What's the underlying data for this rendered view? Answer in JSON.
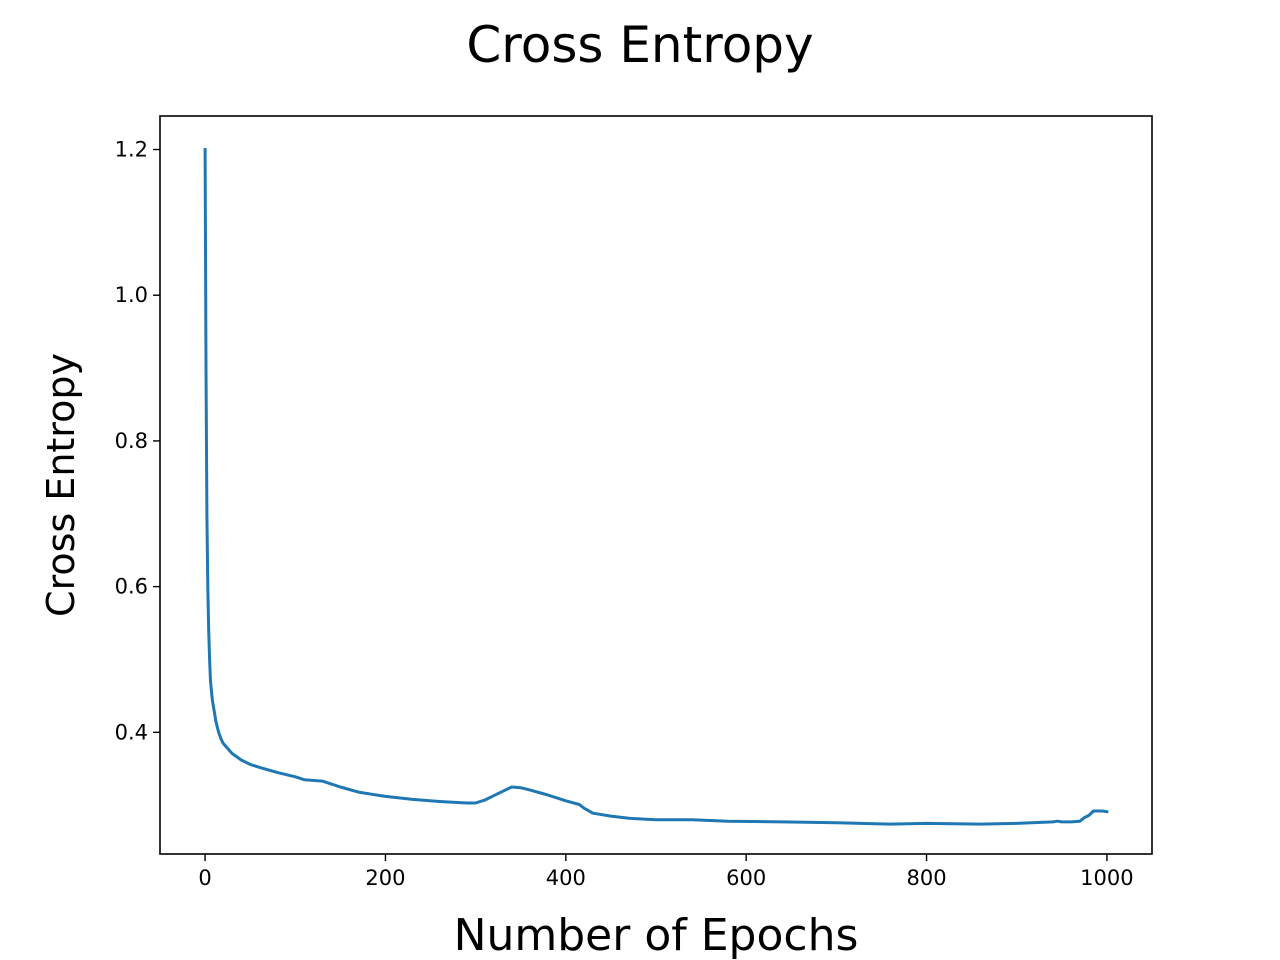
{
  "chart_data": {
    "type": "line",
    "title": "Cross Entropy",
    "xlabel": "Number of Epochs",
    "ylabel": "Cross Entropy",
    "xlim": [
      -50,
      1050
    ],
    "ylim": [
      0.233,
      1.246
    ],
    "xticks": [
      0,
      200,
      400,
      600,
      800,
      1000
    ],
    "yticks": [
      0.4,
      0.6,
      0.8,
      1.0,
      1.2
    ],
    "xtick_labels": [
      "0",
      "200",
      "400",
      "600",
      "800",
      "1000"
    ],
    "ytick_labels": [
      "0.4",
      "0.6",
      "0.8",
      "1.0",
      "1.2"
    ],
    "grid": false,
    "series": [
      {
        "color": "#1f77b4",
        "x": [
          0,
          1,
          2,
          3,
          4,
          5,
          6,
          8,
          10,
          12,
          15,
          18,
          20,
          25,
          30,
          40,
          50,
          60,
          80,
          100,
          110,
          130,
          150,
          170,
          200,
          230,
          260,
          290,
          300,
          310,
          320,
          330,
          340,
          350,
          360,
          380,
          400,
          415,
          420,
          430,
          450,
          470,
          500,
          540,
          580,
          640,
          700,
          760,
          800,
          860,
          900,
          940,
          945,
          950,
          960,
          970,
          975,
          980,
          985,
          990,
          995,
          1000
        ],
        "y": [
          1.2,
          0.9,
          0.7,
          0.6,
          0.54,
          0.5,
          0.47,
          0.445,
          0.43,
          0.415,
          0.4,
          0.39,
          0.385,
          0.378,
          0.371,
          0.362,
          0.356,
          0.352,
          0.345,
          0.339,
          0.335,
          0.333,
          0.325,
          0.318,
          0.312,
          0.308,
          0.305,
          0.303,
          0.303,
          0.307,
          0.313,
          0.319,
          0.325,
          0.324,
          0.321,
          0.314,
          0.306,
          0.301,
          0.296,
          0.289,
          0.285,
          0.282,
          0.28,
          0.28,
          0.278,
          0.277,
          0.276,
          0.274,
          0.275,
          0.274,
          0.275,
          0.277,
          0.278,
          0.277,
          0.277,
          0.278,
          0.283,
          0.286,
          0.292,
          0.292,
          0.292,
          0.291
        ]
      }
    ]
  }
}
